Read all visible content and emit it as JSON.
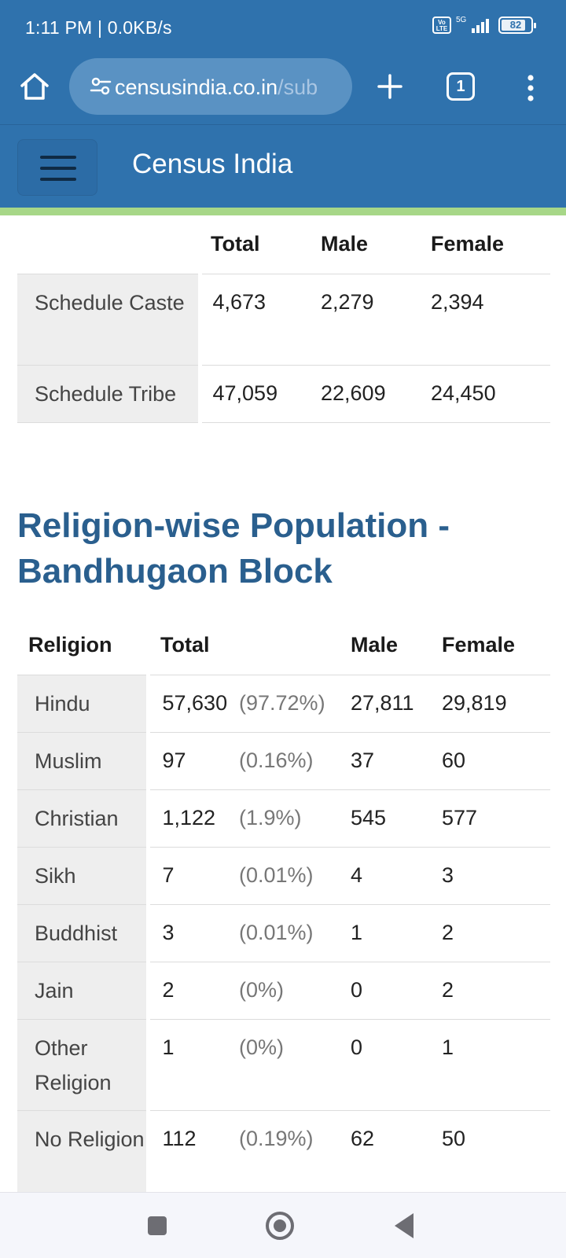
{
  "status_bar": {
    "time": "1:11 PM | 0.0KB/s",
    "volte": "Vo LTE",
    "network": "5G",
    "battery": "82",
    "battery_level": 0.82
  },
  "browser": {
    "url_domain": "censusindia.co.in",
    "url_path": "/sub",
    "tab_count": "1",
    "icons": [
      "home-icon",
      "site-settings-icon",
      "plus-icon",
      "tabs-icon",
      "more-vert-icon"
    ]
  },
  "site": {
    "brand": "Census India",
    "accent_color": "#a7d788",
    "header_color": "#2f72ad"
  },
  "caste_table": {
    "headers": [
      "",
      "Total",
      "Male",
      "Female"
    ],
    "rows": [
      {
        "label": "Schedule Caste",
        "total": "4,673",
        "male": "2,279",
        "female": "2,394"
      },
      {
        "label": "Schedule Tribe",
        "total": "47,059",
        "male": "22,609",
        "female": "24,450"
      }
    ]
  },
  "religion_section": {
    "title": "Religion-wise Population - Bandhugaon Block",
    "headers": {
      "religion": "Religion",
      "total": "Total",
      "male": "Male",
      "female": "Female"
    },
    "rows": [
      {
        "label": "Hindu",
        "total": "57,630",
        "pct": "(97.72%)",
        "male": "27,811",
        "female": "29,819"
      },
      {
        "label": "Muslim",
        "total": "97",
        "pct": "(0.16%)",
        "male": "37",
        "female": "60"
      },
      {
        "label": "Christian",
        "total": "1,122",
        "pct": "(1.9%)",
        "male": "545",
        "female": "577"
      },
      {
        "label": "Sikh",
        "total": "7",
        "pct": "(0.01%)",
        "male": "4",
        "female": "3"
      },
      {
        "label": "Buddhist",
        "total": "3",
        "pct": "(0.01%)",
        "male": "1",
        "female": "2"
      },
      {
        "label": "Jain",
        "total": "2",
        "pct": "(0%)",
        "male": "0",
        "female": "2"
      },
      {
        "label": "Other Religion",
        "total": "1",
        "pct": "(0%)",
        "male": "0",
        "female": "1"
      },
      {
        "label": "No Religion",
        "total": "112",
        "pct": "(0.19%)",
        "male": "62",
        "female": "50"
      }
    ]
  },
  "system_nav": {
    "icons": [
      "recents-icon",
      "home-circle-icon",
      "back-icon"
    ]
  }
}
